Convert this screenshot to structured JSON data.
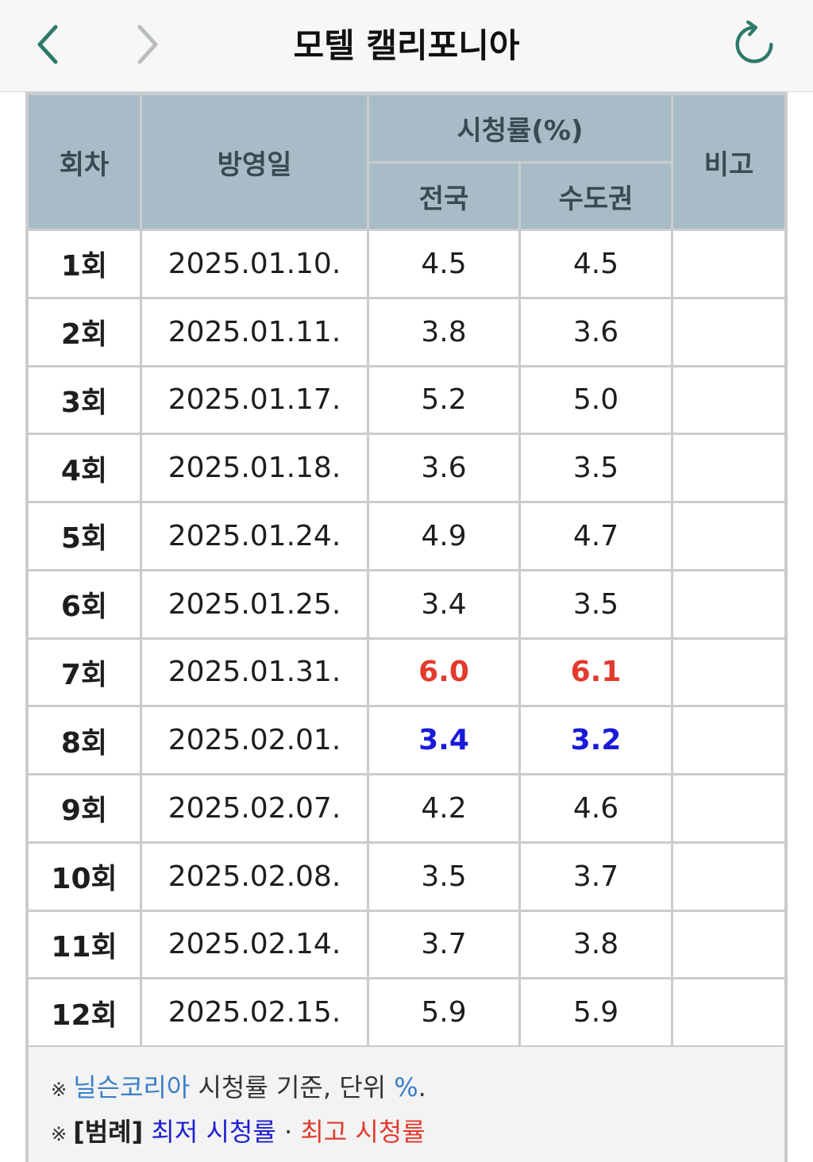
{
  "app": {
    "title": "모텔 캘리포니아",
    "back_icon": "chevron-left-icon",
    "forward_icon": "chevron-right-icon",
    "refresh_icon": "refresh-icon",
    "accent_color": "#2e7a6a"
  },
  "table": {
    "headers": {
      "episode": "회차",
      "airdate": "방영일",
      "rating_group": "시청률(%)",
      "nationwide": "전국",
      "capital": "수도권",
      "note": "비고"
    },
    "rows": [
      {
        "episode": "1회",
        "airdate": "2025.01.10.",
        "nationwide": "4.5",
        "capital": "4.5",
        "note": ""
      },
      {
        "episode": "2회",
        "airdate": "2025.01.11.",
        "nationwide": "3.8",
        "capital": "3.6",
        "note": ""
      },
      {
        "episode": "3회",
        "airdate": "2025.01.17.",
        "nationwide": "5.2",
        "capital": "5.0",
        "note": ""
      },
      {
        "episode": "4회",
        "airdate": "2025.01.18.",
        "nationwide": "3.6",
        "capital": "3.5",
        "note": ""
      },
      {
        "episode": "5회",
        "airdate": "2025.01.24.",
        "nationwide": "4.9",
        "capital": "4.7",
        "note": ""
      },
      {
        "episode": "6회",
        "airdate": "2025.01.25.",
        "nationwide": "3.4",
        "capital": "3.5",
        "note": ""
      },
      {
        "episode": "7회",
        "airdate": "2025.01.31.",
        "nationwide": "6.0",
        "capital": "6.1",
        "note": "",
        "highlight": "high"
      },
      {
        "episode": "8회",
        "airdate": "2025.02.01.",
        "nationwide": "3.4",
        "capital": "3.2",
        "note": "",
        "highlight": "low"
      },
      {
        "episode": "9회",
        "airdate": "2025.02.07.",
        "nationwide": "4.2",
        "capital": "4.6",
        "note": ""
      },
      {
        "episode": "10회",
        "airdate": "2025.02.08.",
        "nationwide": "3.5",
        "capital": "3.7",
        "note": ""
      },
      {
        "episode": "11회",
        "airdate": "2025.02.14.",
        "nationwide": "3.7",
        "capital": "3.8",
        "note": ""
      },
      {
        "episode": "12회",
        "airdate": "2025.02.15.",
        "nationwide": "5.9",
        "capital": "5.9",
        "note": ""
      }
    ],
    "colors": {
      "header_bg": "#a7bcc6",
      "high": "#e23b2e",
      "low": "#1a1ad9"
    }
  },
  "footer": {
    "mark": "※",
    "source_link": "닐슨코리아",
    "source_text": " 시청률 기준, 단위 ",
    "unit_link": "%",
    "unit_tail": ".",
    "legend_label": "[범례]",
    "lowest_label": "최저 시청률",
    "separator": " · ",
    "highest_label": "최고 시청률"
  }
}
